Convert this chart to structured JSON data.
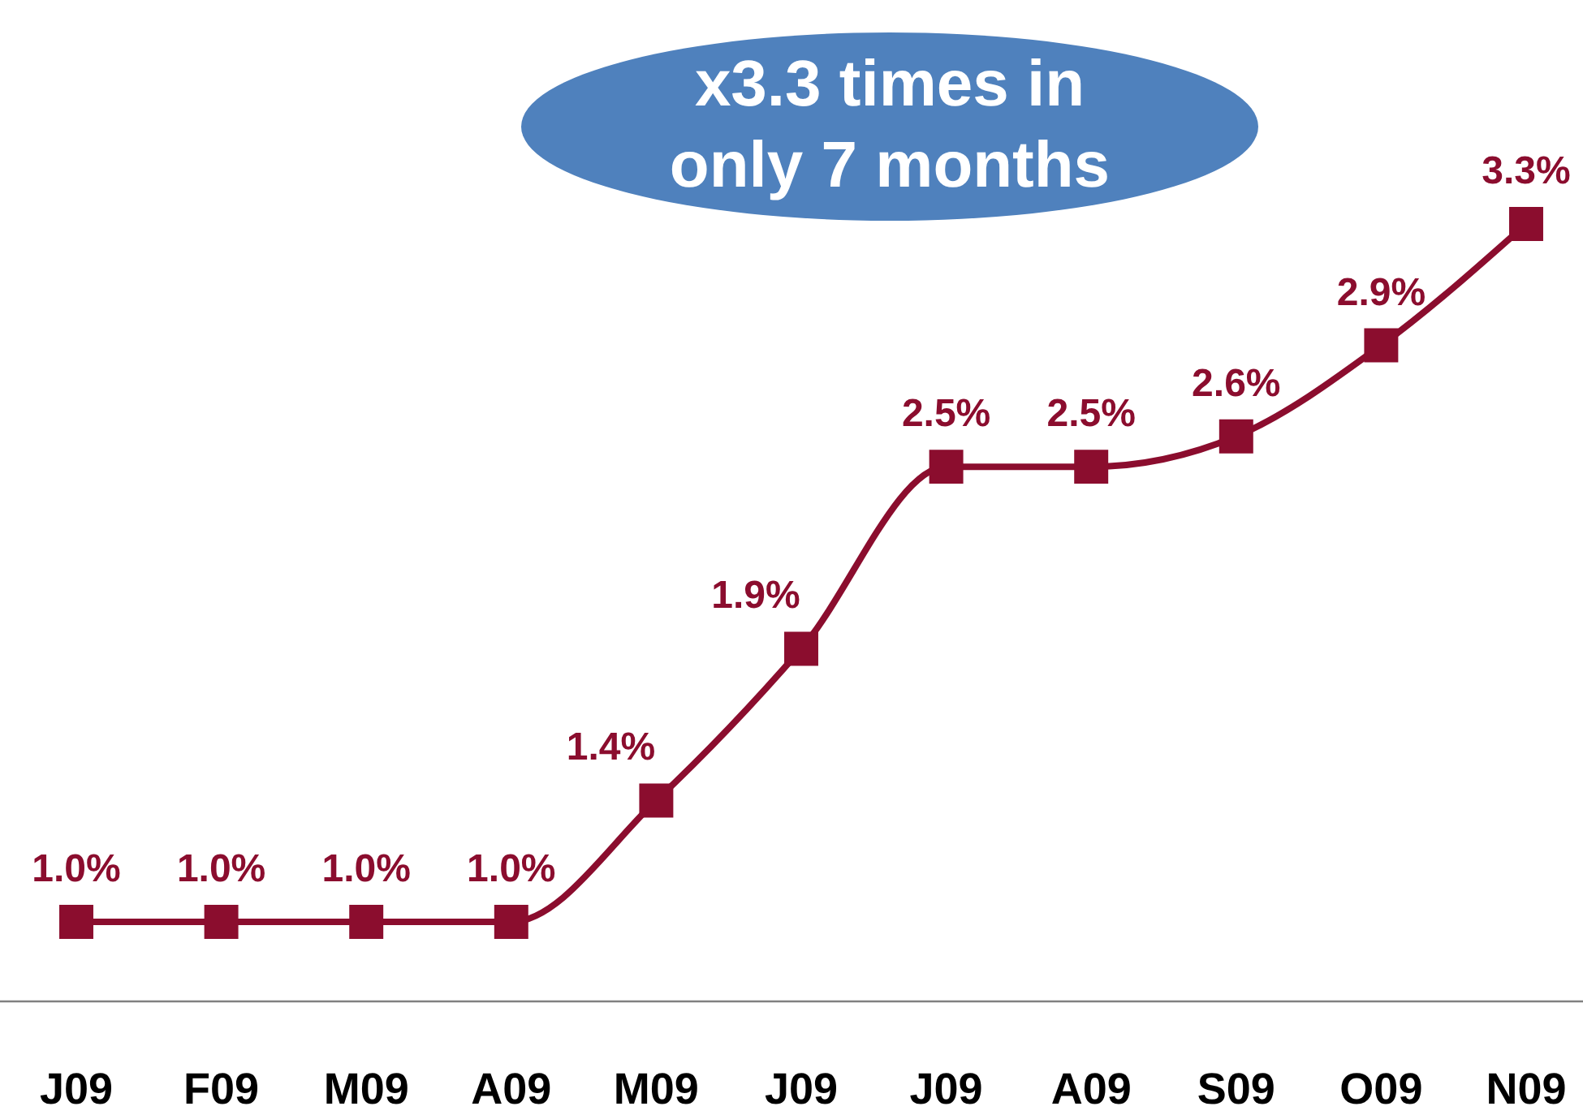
{
  "chart_data": {
    "type": "line",
    "categories": [
      "J09",
      "F09",
      "M09",
      "A09",
      "M09",
      "J09",
      "J09",
      "A09",
      "S09",
      "O09",
      "N09"
    ],
    "series": [
      {
        "color": "#8b0d2e",
        "values": [
          1.0,
          1.0,
          1.0,
          1.0,
          1.4,
          1.9,
          2.5,
          2.5,
          2.6,
          2.9,
          3.3
        ],
        "value_labels": [
          "1.0%",
          "1.0%",
          "1.0%",
          "1.0%",
          "1.4%",
          "1.9%",
          "2.5%",
          "2.5%",
          "2.6%",
          "2.9%",
          "3.3%"
        ]
      }
    ],
    "tick_labels": "x",
    "marker": "square",
    "line_style": "solid",
    "annotations": [
      "x3.3 times in only 7 months"
    ]
  }
}
